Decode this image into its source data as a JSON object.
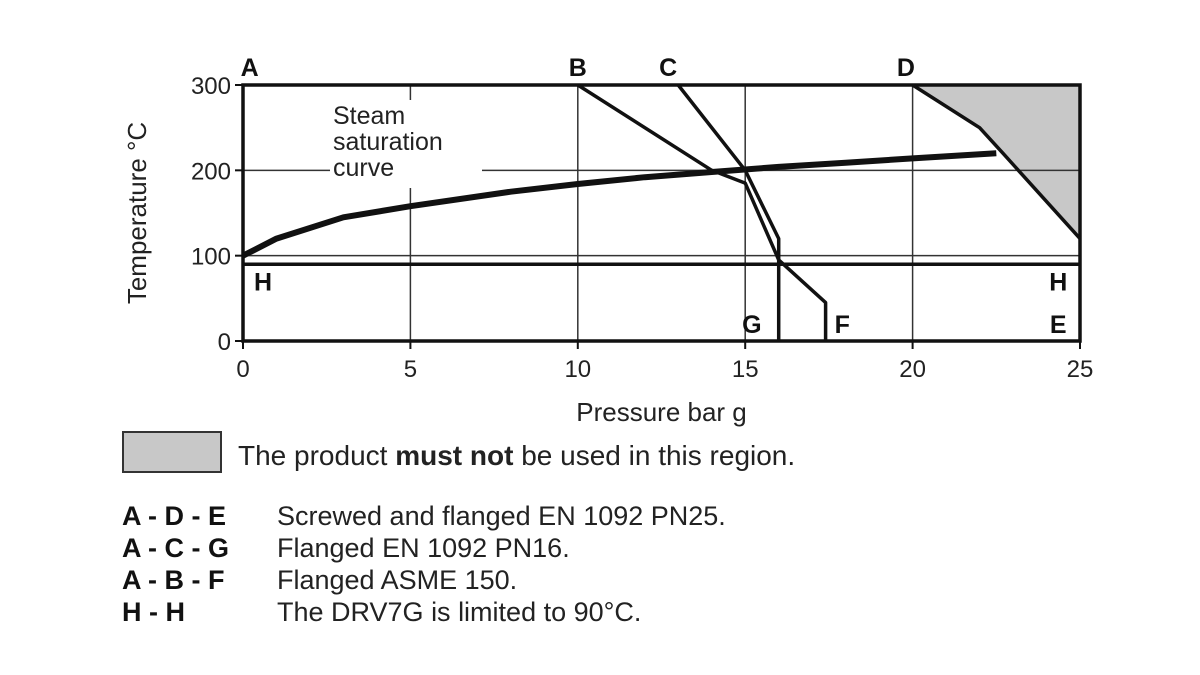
{
  "chart_data": {
    "type": "line",
    "xlabel": "Pressure bar g",
    "ylabel": "Temperature °C",
    "xlim": [
      0,
      25
    ],
    "ylim": [
      0,
      300
    ],
    "x_ticks": [
      "0",
      "5",
      "10",
      "15",
      "20",
      "25"
    ],
    "y_ticks": [
      "0",
      "100",
      "200",
      "300"
    ],
    "grid": true,
    "saturation_curve_label": [
      "Steam",
      "saturation",
      "curve"
    ],
    "series": [
      {
        "points": [
          [
            0,
            100
          ],
          [
            1,
            120
          ],
          [
            3,
            145
          ],
          [
            5,
            158
          ],
          [
            8,
            175
          ],
          [
            10,
            184
          ],
          [
            12,
            192
          ],
          [
            14,
            198
          ],
          [
            16,
            204
          ],
          [
            18,
            209
          ],
          [
            20,
            214
          ],
          [
            22.5,
            220
          ]
        ]
      },
      {
        "points": [
          [
            10,
            300
          ],
          [
            14,
            200
          ],
          [
            15,
            185
          ],
          [
            16,
            95
          ],
          [
            17.4,
            45
          ],
          [
            17.4,
            0
          ]
        ]
      },
      {
        "points": [
          [
            13,
            300
          ],
          [
            15,
            200
          ],
          [
            16,
            120
          ],
          [
            16,
            0
          ]
        ]
      },
      {
        "points": [
          [
            20,
            300
          ],
          [
            22,
            250
          ],
          [
            22.7,
            220
          ],
          [
            25,
            120
          ]
        ]
      },
      {
        "points": [
          [
            0,
            90
          ],
          [
            25,
            90
          ]
        ]
      }
    ],
    "forbidden_region": [
      [
        20,
        300
      ],
      [
        25,
        300
      ],
      [
        25,
        120
      ],
      [
        22.7,
        220
      ],
      [
        22,
        250
      ]
    ],
    "forbidden_region_color": "#c8c8c8",
    "line_labels": [
      {
        "text": "A",
        "x": 0.2,
        "y": 300,
        "pos": "above"
      },
      {
        "text": "B",
        "x": 10,
        "y": 300,
        "pos": "above"
      },
      {
        "text": "C",
        "x": 12.7,
        "y": 300,
        "pos": "above"
      },
      {
        "text": "D",
        "x": 19.8,
        "y": 300,
        "pos": "above"
      },
      {
        "text": "H",
        "x": 0.6,
        "y": 70,
        "pos": "inside"
      },
      {
        "text": "H",
        "x": 24.35,
        "y": 70,
        "pos": "inside"
      },
      {
        "text": "E",
        "x": 24.35,
        "y": 20,
        "pos": "inside"
      },
      {
        "text": "G",
        "x": 15.2,
        "y": 20,
        "pos": "inside"
      },
      {
        "text": "F",
        "x": 17.9,
        "y": 20,
        "pos": "inside"
      }
    ]
  },
  "legend": {
    "text_before": "The product ",
    "text_bold": "must not",
    "text_after": " be used in this region."
  },
  "notes": [
    {
      "key": "A - D - E",
      "text": "Screwed and flanged EN 1092 PN25."
    },
    {
      "key": "A - C - G",
      "text": "Flanged EN 1092 PN16."
    },
    {
      "key": "A - B - F",
      "text": "Flanged ASME 150."
    },
    {
      "key": "H - H",
      "text": "The DRV7G is limited to 90°C."
    }
  ]
}
